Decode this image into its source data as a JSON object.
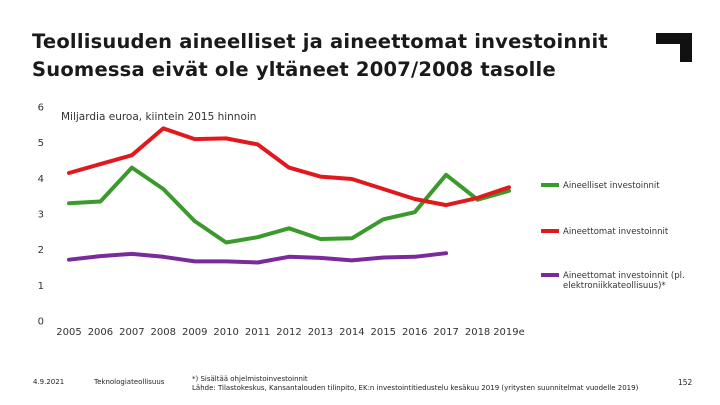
{
  "title": {
    "line1": "Teollisuuden aineelliset ja aineettomat investoinnit",
    "line2": "Suomessa eivät ole yltäneet 2007/2008 tasolle"
  },
  "footer": {
    "date": "4.9.2021",
    "organization": "Teknologiateollisuus",
    "note": "*) Sisältää ohjelmistoinvestoinnit",
    "source": "Lähde: Tilastokeskus, Kansantalouden tilinpito, EK:n investointitiedustelu kesäkuu 2019 (yritysten suunnitelmat vuodelle 2019)",
    "page_number": "152"
  },
  "chart_data": {
    "type": "line",
    "ylabel": "Miljardia euroa, kiintein 2015 hinnoin",
    "xlabel": "",
    "ylim": [
      0,
      6
    ],
    "yticks": [
      "0",
      "1",
      "2",
      "3",
      "4",
      "5",
      "6"
    ],
    "categories": [
      "2005",
      "2006",
      "2007",
      "2008",
      "2009",
      "2010",
      "2011",
      "2012",
      "2013",
      "2014",
      "2015",
      "2016",
      "2017",
      "2018",
      "2019e"
    ],
    "series": [
      {
        "name": "Aineelliset investoinnit",
        "color": "#3a9a2c",
        "values": [
          3.3,
          3.35,
          4.3,
          3.7,
          2.8,
          2.2,
          2.35,
          2.6,
          2.3,
          2.32,
          2.85,
          3.05,
          4.1,
          3.4,
          3.65
        ]
      },
      {
        "name": "Aineettomat investoinnit",
        "color": "#e0191e",
        "values": [
          4.15,
          4.4,
          4.65,
          5.4,
          5.1,
          5.12,
          4.95,
          4.3,
          4.05,
          3.98,
          3.7,
          3.42,
          3.25,
          3.45,
          3.75
        ]
      },
      {
        "name": "Aineettomat investoinnit (pl. elektroniikkateollisuus)*",
        "color": "#7a2a9b",
        "values": [
          1.72,
          1.82,
          1.88,
          1.8,
          1.67,
          1.67,
          1.64,
          1.8,
          1.77,
          1.7,
          1.78,
          1.8,
          1.9,
          null,
          null
        ]
      }
    ]
  },
  "legend_labels": [
    [
      "Aineelliset investoinnit"
    ],
    [
      "Aineettomat investoinnit"
    ],
    [
      "Aineettomat investoinnit (pl.",
      "elektroniikkateollisuus)*"
    ]
  ],
  "logo": {
    "color": "#111111"
  }
}
